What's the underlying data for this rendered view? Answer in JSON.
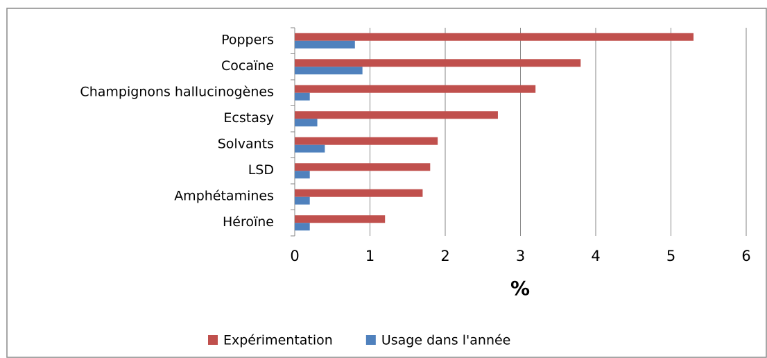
{
  "chart_data": {
    "type": "bar",
    "orientation": "horizontal",
    "categories": [
      "Poppers",
      "Cocaïne",
      "Champignons hallucinogènes",
      "Ecstasy",
      "Solvants",
      "LSD",
      "Amphétamines",
      "Héroïne"
    ],
    "series": [
      {
        "name": "Expérimentation",
        "color": "#c0504d",
        "values": [
          5.3,
          3.8,
          3.2,
          2.7,
          1.9,
          1.8,
          1.7,
          1.2
        ]
      },
      {
        "name": "Usage dans l'année",
        "color": "#4f81bd",
        "values": [
          0.8,
          0.9,
          0.2,
          0.3,
          0.4,
          0.2,
          0.2,
          0.2
        ]
      }
    ],
    "xlabel": "%",
    "xlim": [
      0,
      6
    ],
    "xticks": [
      0,
      1,
      2,
      3,
      4,
      5,
      6
    ],
    "grid": true,
    "legend": "bottom"
  }
}
